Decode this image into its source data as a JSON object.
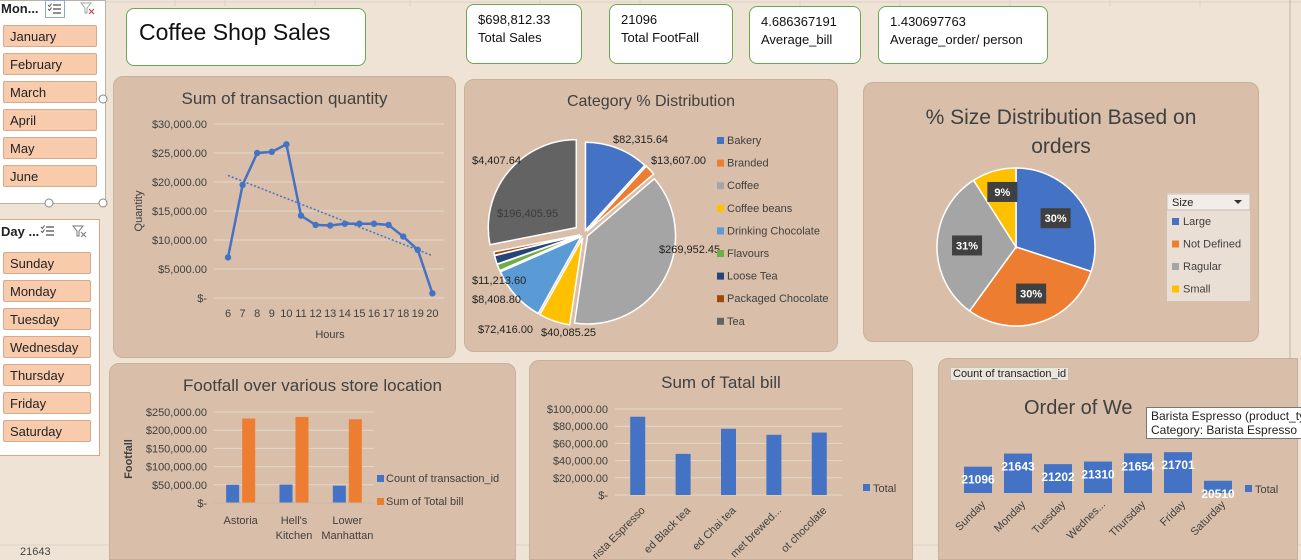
{
  "month_slicer": {
    "title": "Mon...",
    "items": [
      "January",
      "February",
      "March",
      "April",
      "May",
      "June"
    ]
  },
  "day_slicer": {
    "title": "Day ...",
    "items": [
      "Sunday",
      "Monday",
      "Tuesday",
      "Wednesday",
      "Thursday",
      "Friday",
      "Saturday"
    ]
  },
  "title_box": {
    "text": "Coffee Shop Sales"
  },
  "kpis": [
    {
      "value": "$698,812.33",
      "label": "Total Sales"
    },
    {
      "value": "21096",
      "label": "Total FootFall"
    },
    {
      "value": "4.686367191",
      "label": "Average_bill"
    },
    {
      "value": "1.430697763",
      "label": "Average_order/ person"
    }
  ],
  "bottom_left_cell": "21643",
  "tooltip": {
    "line1": "Barista Espresso (product_typ",
    "line2": "Category: Barista Espresso"
  },
  "colors": {
    "blue": "#4472c4",
    "orange": "#ed7d31",
    "gray": "#a5a5a5",
    "gold": "#ffc000",
    "panel": "#d9bfa9",
    "slicer_item": "#f8cbad"
  },
  "chart_data": [
    {
      "id": "quantity",
      "type": "line",
      "title": "Sum of transaction quantity",
      "xlabel": "Hours",
      "ylabel": "Quantity",
      "x": [
        "6",
        "7",
        "8",
        "9",
        "10",
        "11",
        "12",
        "13",
        "14",
        "15",
        "16",
        "17",
        "18",
        "19",
        "20"
      ],
      "values": [
        7000,
        19500,
        25000,
        25200,
        26500,
        14200,
        12600,
        12500,
        12800,
        12800,
        12800,
        12600,
        10600,
        8300,
        800
      ],
      "ylim": [
        0,
        30000
      ],
      "yticks": [
        "$-",
        "$5,000.00",
        "$10,000.00",
        "$15,000.00",
        "$20,000.00",
        "$25,000.00",
        "$30,000.00"
      ],
      "trendline": true,
      "grid": true
    },
    {
      "id": "category",
      "type": "pie",
      "title": "Category % Distribution",
      "labels": [
        "Bakery",
        "Branded",
        "Coffee",
        "Coffee beans",
        "Drinking Chocolate",
        "Flavours",
        "Loose Tea",
        "Packaged Chocolate",
        "Tea"
      ],
      "values": [
        82315.64,
        13607.0,
        269952.45,
        40085.25,
        72416.0,
        8408.8,
        11213.6,
        4407.64,
        196405.95
      ],
      "data_labels": [
        "$82,315.64",
        "$13,607.00",
        "$269,952.45",
        "$40,085.25",
        "$72,416.00",
        "$8,408.80",
        "$11,213.60",
        "$4,407.64",
        "$196,405.95"
      ],
      "colors": [
        "#4472c4",
        "#ed7d31",
        "#a5a5a5",
        "#ffc000",
        "#5b9bd5",
        "#70ad47",
        "#264478",
        "#9e480e",
        "#636363"
      ],
      "legend": "right"
    },
    {
      "id": "size",
      "type": "pie",
      "title": "% Size Distribution Based on orders",
      "legend_title": "Size",
      "labels": [
        "Large",
        "Not Defined",
        "Ragular",
        "Small"
      ],
      "values": [
        30,
        30,
        31,
        9
      ],
      "data_labels": [
        "30%",
        "30%",
        "31%",
        "9%"
      ],
      "colors": [
        "#4472c4",
        "#ed7d31",
        "#a5a5a5",
        "#ffc000"
      ],
      "legend": "right"
    },
    {
      "id": "footfall",
      "type": "bar",
      "title": "Footfall over various store location",
      "ylabel": "Footfall",
      "categories": [
        "Astoria",
        "Hell's Kitchen",
        "Lower Manhattan"
      ],
      "series": [
        {
          "name": "Count of transaction_id",
          "values": [
            50000,
            50500,
            47800
          ]
        },
        {
          "name": "Sum of Total bill",
          "values": [
            232000,
            236500,
            230000
          ]
        }
      ],
      "ylim": [
        0,
        250000
      ],
      "yticks": [
        "$-",
        "$50,000.00",
        "$100,000.00",
        "$150,000.00",
        "$200,000.00",
        "$250,000.00"
      ],
      "legend": "right"
    },
    {
      "id": "totalbill",
      "type": "bar",
      "title": "Sum of Tatal bill",
      "categories": [
        "Barista Espresso",
        "Brewed Black tea",
        "Brewed Chai tea",
        "Gourmet brewed...",
        "Hot chocolate"
      ],
      "tick_labels": [
        "rista Espresso",
        "ed Black tea",
        "ed Chai tea",
        "met brewed...",
        "ot chocolate"
      ],
      "series": [
        {
          "name": "Total",
          "values": [
            91000,
            47800,
            77000,
            70000,
            72600
          ]
        }
      ],
      "ylim": [
        0,
        100000
      ],
      "yticks": [
        "$-",
        "$20,000.00",
        "$40,000.00",
        "$60,000.00",
        "$80,000.00",
        "$100,000.00"
      ],
      "legend": "right"
    },
    {
      "id": "weekday",
      "type": "bar",
      "title": "Order of Weekdays",
      "title_visible": "Order of We",
      "field_button": "Count of transaction_id",
      "categories": [
        "Sunday",
        "Monday",
        "Tuesday",
        "Wednes...",
        "Thursday",
        "Friday",
        "Saturday"
      ],
      "series": [
        {
          "name": "Total",
          "values": [
            21096,
            21643,
            21202,
            21310,
            21654,
            21701,
            20510
          ]
        }
      ],
      "data_labels": [
        "21096",
        "21643",
        "21202",
        "21310",
        "21654",
        "21701",
        "20510"
      ],
      "ylim": [
        20000,
        22000
      ],
      "legend": "right"
    }
  ]
}
